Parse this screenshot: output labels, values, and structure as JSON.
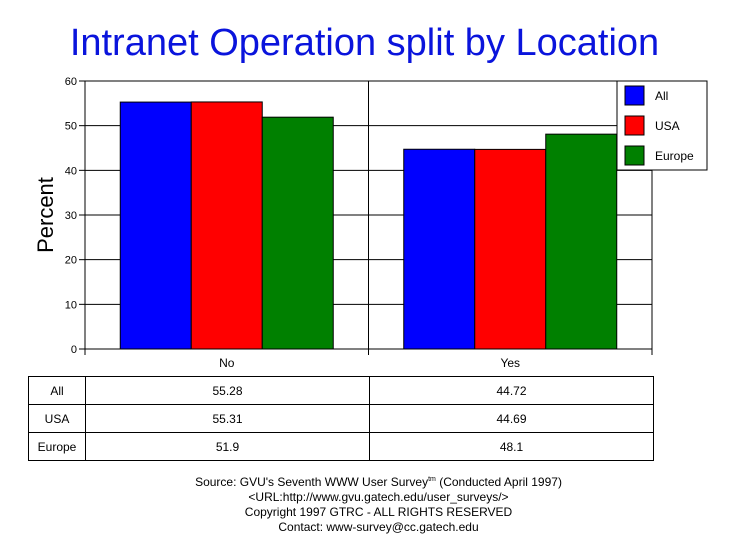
{
  "chart_data": {
    "type": "bar",
    "title": "Intranet Operation split by Location",
    "ylabel": "Percent",
    "xlabel": "",
    "ylim": [
      0,
      60
    ],
    "yticks": [
      0,
      10,
      20,
      30,
      40,
      50,
      60
    ],
    "categories": [
      "No",
      "Yes"
    ],
    "series": [
      {
        "name": "All",
        "values": [
          55.28,
          44.72
        ],
        "color": "#0000ff"
      },
      {
        "name": "USA",
        "values": [
          55.31,
          44.69
        ],
        "color": "#ff0000"
      },
      {
        "name": "Europe",
        "values": [
          51.9,
          48.1
        ],
        "color": "#008000"
      }
    ],
    "table": {
      "rows": [
        {
          "label": "All",
          "values": [
            "55.28",
            "44.72"
          ]
        },
        {
          "label": "USA",
          "values": [
            "55.31",
            "44.69"
          ]
        },
        {
          "label": "Europe",
          "values": [
            "51.9",
            "48.1"
          ]
        }
      ]
    },
    "legend_position": "top-right",
    "grid": true
  },
  "footer": {
    "source_line": "Source: GVU's Seventh WWW User Survey",
    "tm": "tm",
    "source_suffix": " (Conducted April 1997)",
    "url_line": "<URL:http://www.gvu.gatech.edu/user_surveys/>",
    "copyright": "Copyright 1997 GTRC - ALL RIGHTS RESERVED",
    "contact": "Contact: www-survey@cc.gatech.edu"
  }
}
